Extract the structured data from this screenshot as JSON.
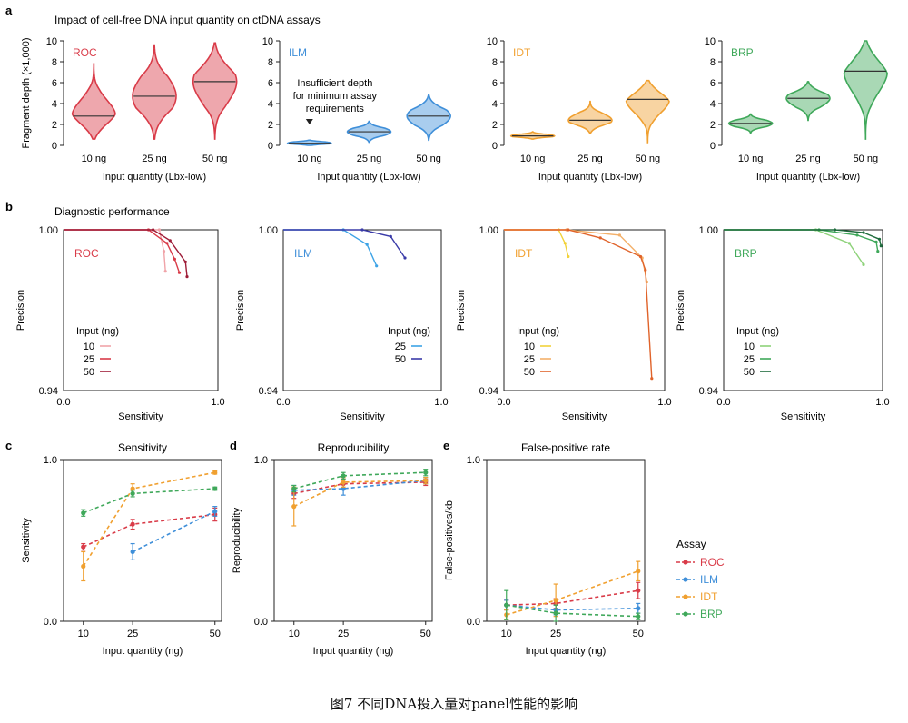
{
  "caption": "图7 不同DNA投入量对panel性能的影响",
  "panel_letters": [
    "a",
    "b",
    "c",
    "d",
    "e"
  ],
  "section_titles": {
    "a": "Impact of cell-free DNA input quantity on ctDNA assays",
    "b": "Diagnostic performance"
  },
  "a_note": [
    "Insufficient depth",
    "for minimum assay",
    "requirements"
  ],
  "a_ylabel": "Fragment depth (×1,000)",
  "a_xlabel": "Input quantity (Lbx-low)",
  "b_ylabel": "Precision",
  "b_xlabel": "Sensitivity",
  "b_legend_title": "Input (ng)",
  "assay_legend_title": "Assay",
  "colors": {
    "ROC": "#d93b48",
    "ILM": "#3f8fd9",
    "IDT": "#f0a030",
    "BRP": "#3fa85a"
  },
  "chart_data": [
    {
      "panel": "a",
      "type": "violin",
      "assay": "ROC",
      "color": "#d93b48",
      "categories": [
        "10 ng",
        "25 ng",
        "50 ng"
      ],
      "medians": [
        2.8,
        4.7,
        6.1
      ],
      "range": [
        [
          0.6,
          7.8
        ],
        [
          0.6,
          9.6
        ],
        [
          0.6,
          9.8
        ]
      ],
      "ylim": [
        0,
        10
      ],
      "yticks": [
        0,
        2,
        4,
        6,
        8,
        10
      ]
    },
    {
      "panel": "a",
      "type": "violin",
      "assay": "ILM",
      "color": "#3f8fd9",
      "categories": [
        "10 ng",
        "25 ng",
        "50 ng"
      ],
      "medians": [
        0.2,
        1.3,
        2.8
      ],
      "range": [
        [
          0.0,
          0.5
        ],
        [
          0.3,
          2.3
        ],
        [
          0.5,
          4.8
        ]
      ],
      "ylim": [
        0,
        10
      ],
      "yticks": [
        0,
        2,
        4,
        6,
        8,
        10
      ]
    },
    {
      "panel": "a",
      "type": "violin",
      "assay": "IDT",
      "color": "#f0a030",
      "categories": [
        "10 ng",
        "25 ng",
        "50 ng"
      ],
      "medians": [
        0.9,
        2.4,
        4.4
      ],
      "range": [
        [
          0.6,
          1.3
        ],
        [
          1.2,
          4.2
        ],
        [
          0.2,
          6.2
        ]
      ],
      "ylim": [
        0,
        10
      ],
      "yticks": [
        0,
        2,
        4,
        6,
        8,
        10
      ]
    },
    {
      "panel": "a",
      "type": "violin",
      "assay": "BRP",
      "color": "#3fa85a",
      "categories": [
        "10 ng",
        "25 ng",
        "50 ng"
      ],
      "medians": [
        2.1,
        4.5,
        7.1
      ],
      "range": [
        [
          1.2,
          3.0
        ],
        [
          2.4,
          6.1
        ],
        [
          0.6,
          10.0
        ]
      ],
      "ylim": [
        0,
        10
      ],
      "yticks": [
        0,
        2,
        4,
        6,
        8,
        10
      ]
    },
    {
      "panel": "b",
      "type": "line",
      "assay": "ROC",
      "xlim": [
        0,
        1
      ],
      "ylim": [
        0.94,
        1.0
      ],
      "series": [
        {
          "name": "10",
          "color": "#f0a3a8",
          "x": [
            0,
            0.62,
            0.65,
            0.66
          ],
          "y": [
            1.0,
            1.0,
            0.992,
            0.9845
          ]
        },
        {
          "name": "25",
          "color": "#d93b48",
          "x": [
            0,
            0.55,
            0.67,
            0.72,
            0.75
          ],
          "y": [
            1.0,
            1.0,
            0.995,
            0.989,
            0.984
          ]
        },
        {
          "name": "50",
          "color": "#9e1d38",
          "x": [
            0,
            0.58,
            0.69,
            0.79,
            0.8
          ],
          "y": [
            1.0,
            1.0,
            0.996,
            0.988,
            0.9825
          ]
        }
      ]
    },
    {
      "panel": "b",
      "type": "line",
      "assay": "ILM",
      "xlim": [
        0,
        1
      ],
      "ylim": [
        0.94,
        1.0
      ],
      "series": [
        {
          "name": "25",
          "color": "#3da3e6",
          "x": [
            0,
            0.38,
            0.53,
            0.59
          ],
          "y": [
            1.0,
            1.0,
            0.9945,
            0.9865
          ]
        },
        {
          "name": "50",
          "color": "#3a3ba8",
          "x": [
            0,
            0.5,
            0.68,
            0.77
          ],
          "y": [
            1.0,
            1.0,
            0.9975,
            0.9895
          ]
        }
      ]
    },
    {
      "panel": "b",
      "type": "line",
      "assay": "IDT",
      "xlim": [
        0,
        1
      ],
      "ylim": [
        0.94,
        1.0
      ],
      "series": [
        {
          "name": "10",
          "color": "#f2d23a",
          "x": [
            0,
            0.34,
            0.38,
            0.4
          ],
          "y": [
            1.0,
            1.0,
            0.995,
            0.99
          ]
        },
        {
          "name": "25",
          "color": "#f3b06a",
          "x": [
            0,
            0.39,
            0.72,
            0.86,
            0.89
          ],
          "y": [
            1.0,
            1.0,
            0.998,
            0.9895,
            0.9805
          ]
        },
        {
          "name": "50",
          "color": "#e0632a",
          "x": [
            0,
            0.4,
            0.6,
            0.85,
            0.88,
            0.92
          ],
          "y": [
            1.0,
            1.0,
            0.997,
            0.99,
            0.985,
            0.9445
          ]
        }
      ]
    },
    {
      "panel": "b",
      "type": "line",
      "assay": "BRP",
      "xlim": [
        0,
        1
      ],
      "ylim": [
        0.94,
        1.0
      ],
      "series": [
        {
          "name": "10",
          "color": "#8ed27a",
          "x": [
            0,
            0.58,
            0.79,
            0.88
          ],
          "y": [
            1.0,
            1.0,
            0.995,
            0.987
          ]
        },
        {
          "name": "25",
          "color": "#3fa85a",
          "x": [
            0,
            0.6,
            0.84,
            0.96,
            0.97
          ],
          "y": [
            1.0,
            1.0,
            0.998,
            0.9955,
            0.992
          ]
        },
        {
          "name": "50",
          "color": "#1e6b3c",
          "x": [
            0,
            0.7,
            0.88,
            0.98,
            0.99
          ],
          "y": [
            1.0,
            1.0,
            0.999,
            0.9965,
            0.994
          ]
        }
      ]
    },
    {
      "panel": "c",
      "type": "line",
      "title": "Sensitivity",
      "ylabel": "Sensitivity",
      "xlabel": "Input quantity (ng)",
      "x": [
        10,
        25,
        50
      ],
      "xlim": [
        4,
        52
      ],
      "ylim": [
        0,
        1
      ],
      "yticks": [
        0.0,
        1.0
      ],
      "series": [
        {
          "name": "ROC",
          "color": "#d93b48",
          "values": [
            0.46,
            0.6,
            0.66
          ],
          "err": [
            0.02,
            0.03,
            0.04
          ]
        },
        {
          "name": "ILM",
          "color": "#3f8fd9",
          "values": [
            null,
            0.43,
            0.68
          ],
          "err": [
            0,
            0.05,
            0.03
          ]
        },
        {
          "name": "IDT",
          "color": "#f0a030",
          "values": [
            0.34,
            0.82,
            0.92
          ],
          "err": [
            0.09,
            0.03,
            0.01
          ]
        },
        {
          "name": "BRP",
          "color": "#3fa85a",
          "values": [
            0.67,
            0.79,
            0.82
          ],
          "err": [
            0.02,
            0.02,
            0.01
          ]
        }
      ]
    },
    {
      "panel": "d",
      "type": "line",
      "title": "Reproducibility",
      "ylabel": "Reproducibility",
      "xlabel": "Input quantity (ng)",
      "x": [
        10,
        25,
        50
      ],
      "xlim": [
        4,
        52
      ],
      "ylim": [
        0,
        1
      ],
      "yticks": [
        0.0,
        1.0
      ],
      "series": [
        {
          "name": "ROC",
          "color": "#d93b48",
          "values": [
            0.79,
            0.85,
            0.86
          ],
          "err": [
            0.03,
            0.03,
            0.02
          ]
        },
        {
          "name": "ILM",
          "color": "#3f8fd9",
          "values": [
            0.81,
            0.82,
            0.87
          ],
          "err": [
            0.03,
            0.04,
            0.02
          ]
        },
        {
          "name": "IDT",
          "color": "#f0a030",
          "values": [
            0.71,
            0.86,
            0.87
          ],
          "err": [
            0.12,
            0.03,
            0.02
          ]
        },
        {
          "name": "BRP",
          "color": "#3fa85a",
          "values": [
            0.82,
            0.9,
            0.92
          ],
          "err": [
            0.02,
            0.02,
            0.02
          ]
        }
      ]
    },
    {
      "panel": "e",
      "type": "line",
      "title": "False-positive rate",
      "ylabel": "False-positives/kb",
      "xlabel": "Input quantity (ng)",
      "x": [
        10,
        25,
        50
      ],
      "xlim": [
        4,
        52
      ],
      "ylim": [
        0,
        1
      ],
      "yticks": [
        0.0,
        1.0
      ],
      "series": [
        {
          "name": "ROC",
          "color": "#d93b48",
          "values": [
            0.1,
            0.11,
            0.19
          ],
          "err": [
            0.03,
            0.03,
            0.05
          ]
        },
        {
          "name": "ILM",
          "color": "#3f8fd9",
          "values": [
            0.1,
            0.07,
            0.08
          ],
          "err": [
            0.03,
            0.03,
            0.03
          ]
        },
        {
          "name": "IDT",
          "color": "#f0a030",
          "values": [
            0.04,
            0.13,
            0.31
          ],
          "err": [
            0.03,
            0.1,
            0.06
          ]
        },
        {
          "name": "BRP",
          "color": "#3fa85a",
          "values": [
            0.1,
            0.05,
            0.03
          ],
          "err": [
            0.09,
            0.05,
            0.02
          ]
        }
      ]
    }
  ]
}
